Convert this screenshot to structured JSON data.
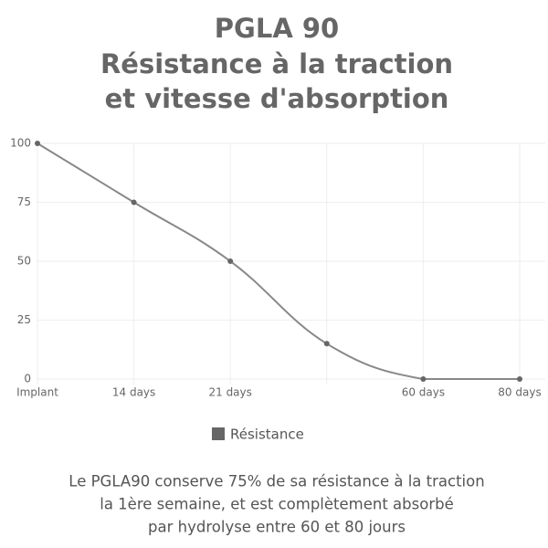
{
  "chart_data": {
    "type": "line",
    "title": [
      "PGLA 90",
      "Résistance à la traction",
      "et vitesse d'absorption"
    ],
    "categories": [
      "Implant",
      "14 days",
      "21 days",
      null,
      "60 days",
      "80 days"
    ],
    "series": [
      {
        "name": "Résistance",
        "color": "#888888",
        "values": [
          100,
          75,
          50,
          15,
          0,
          0
        ]
      }
    ],
    "ylim": [
      0,
      100
    ],
    "yticks": [
      0,
      25,
      50,
      75,
      100
    ],
    "grid": true,
    "legend": "bottom",
    "annotation": [
      "Le PGLA90 conserve 75% de sa résistance à la traction",
      "la 1ère semaine, et est complètement absorbé",
      "par hydrolyse entre 60 et 80 jours"
    ]
  }
}
